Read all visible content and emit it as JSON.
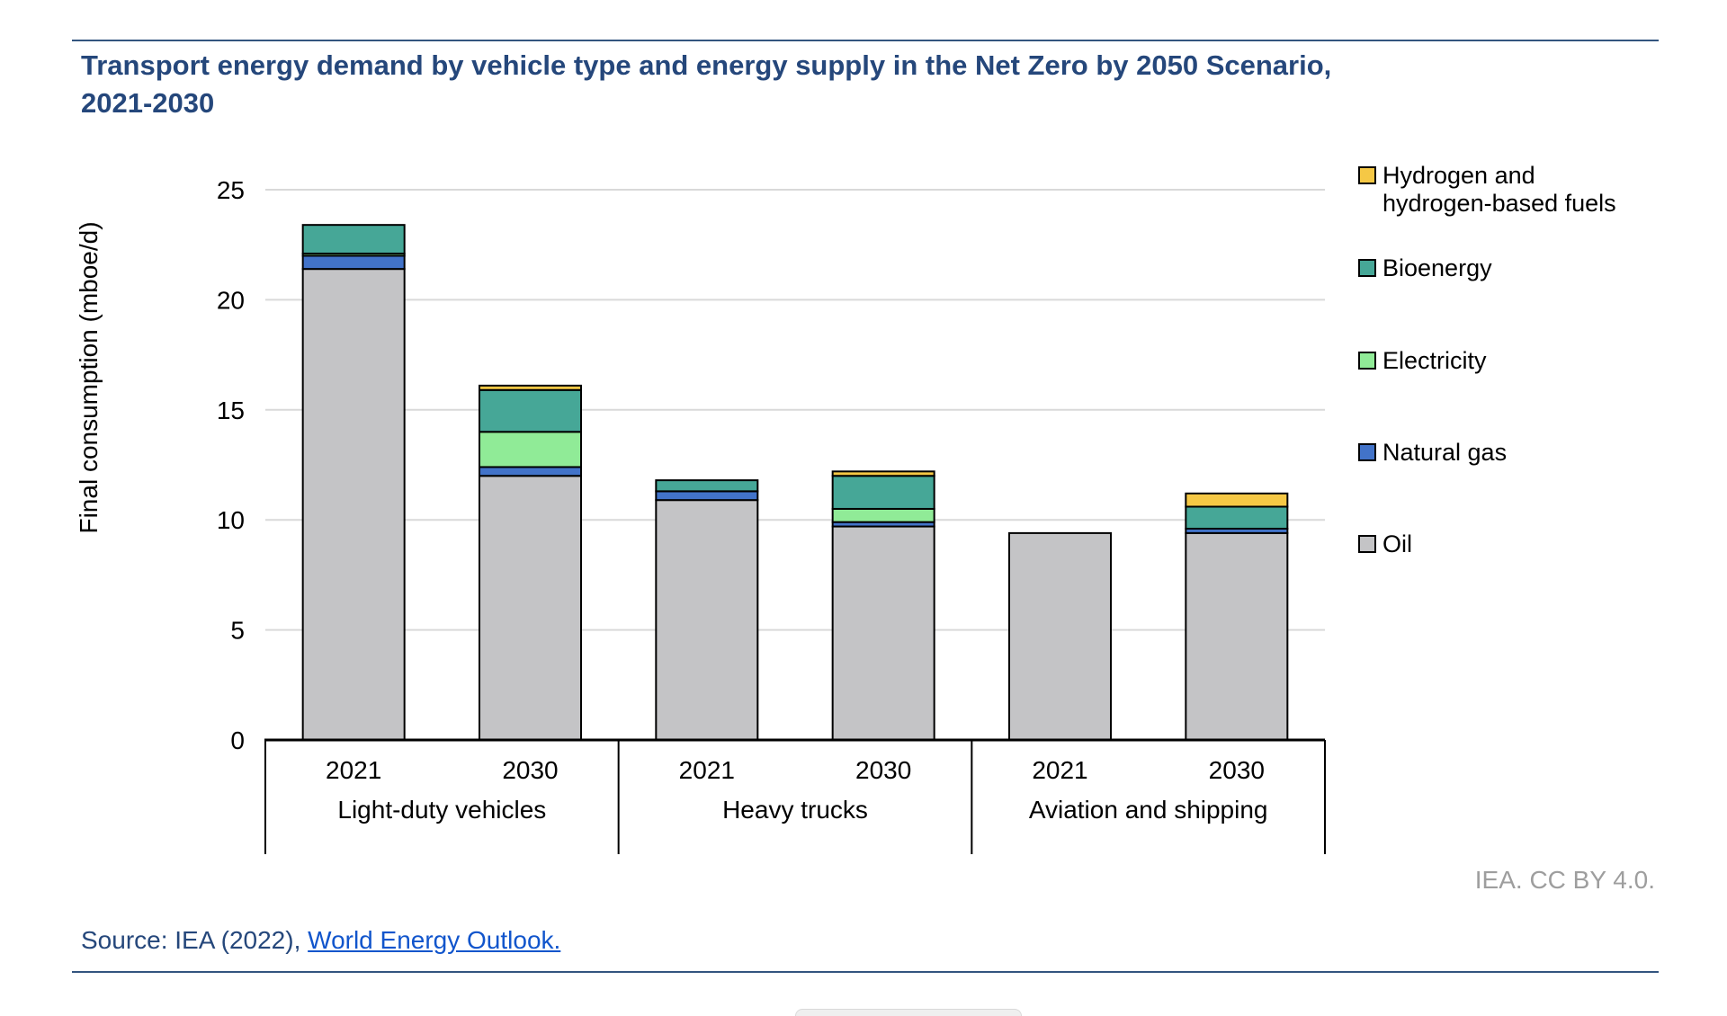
{
  "page": {
    "title": "Transport energy demand by vehicle type and energy supply in the Net Zero by 2050 Scenario, 2021-2030",
    "attribution": "IEA. CC BY 4.0.",
    "source_prefix": "Source: IEA (2022), ",
    "source_link_text": "World Energy Outlook."
  },
  "colors": {
    "title": "#25477B",
    "rule": "#33557F",
    "source_text": "#25477B",
    "link": "#1155CC",
    "attribution": "#9E9E9E",
    "grid": "#D9D9D9",
    "axis": "#000000",
    "bar_border": "#000000",
    "background": "#FFFFFF"
  },
  "legend": {
    "position": "right",
    "items": [
      {
        "key": "hydrogen",
        "label": "Hydrogen and hydrogen-based fuels",
        "color": "#F5C845"
      },
      {
        "key": "bioenergy",
        "label": "Bioenergy",
        "color": "#46A797"
      },
      {
        "key": "electricity",
        "label": "Electricity",
        "color": "#90EB97"
      },
      {
        "key": "natural_gas",
        "label": "Natural gas",
        "color": "#4273C9"
      },
      {
        "key": "oil",
        "label": "Oil",
        "color": "#C4C4C6"
      }
    ]
  },
  "chart_data": {
    "type": "bar",
    "stacked": true,
    "title": "Transport energy demand by vehicle type and energy supply in the Net Zero by 2050 Scenario, 2021-2030",
    "xlabel": "",
    "ylabel": "Final consumption (mboe/d)",
    "ylim": [
      0,
      25
    ],
    "yticks": [
      0,
      5,
      10,
      15,
      20,
      25
    ],
    "grid": true,
    "legend_position": "right",
    "series": [
      {
        "key": "oil",
        "label": "Oil",
        "color": "#C4C4C6"
      },
      {
        "key": "natural_gas",
        "label": "Natural gas",
        "color": "#4273C9"
      },
      {
        "key": "electricity",
        "label": "Electricity",
        "color": "#90EB97"
      },
      {
        "key": "bioenergy",
        "label": "Bioenergy",
        "color": "#46A797"
      },
      {
        "key": "hydrogen",
        "label": "Hydrogen and hydrogen-based fuels",
        "color": "#F5C845"
      }
    ],
    "groups": [
      {
        "label": "Light-duty vehicles",
        "bars": [
          {
            "year": "2021",
            "total": 23.4,
            "values": {
              "oil": 21.4,
              "natural_gas": 0.6,
              "electricity": 0.1,
              "bioenergy": 1.3,
              "hydrogen": 0
            }
          },
          {
            "year": "2030",
            "total": 16.1,
            "values": {
              "oil": 12.0,
              "natural_gas": 0.4,
              "electricity": 1.6,
              "bioenergy": 1.9,
              "hydrogen": 0.2
            }
          }
        ]
      },
      {
        "label": "Heavy trucks",
        "bars": [
          {
            "year": "2021",
            "total": 11.8,
            "values": {
              "oil": 10.9,
              "natural_gas": 0.4,
              "electricity": 0,
              "bioenergy": 0.5,
              "hydrogen": 0
            }
          },
          {
            "year": "2030",
            "total": 12.2,
            "values": {
              "oil": 9.7,
              "natural_gas": 0.2,
              "electricity": 0.6,
              "bioenergy": 1.5,
              "hydrogen": 0.2
            }
          }
        ]
      },
      {
        "label": "Aviation and shipping",
        "bars": [
          {
            "year": "2021",
            "total": 9.4,
            "values": {
              "oil": 9.4,
              "natural_gas": 0,
              "electricity": 0,
              "bioenergy": 0,
              "hydrogen": 0
            }
          },
          {
            "year": "2030",
            "total": 11.2,
            "values": {
              "oil": 9.4,
              "natural_gas": 0.2,
              "electricity": 0,
              "bioenergy": 1.0,
              "hydrogen": 0.6
            }
          }
        ]
      }
    ]
  }
}
